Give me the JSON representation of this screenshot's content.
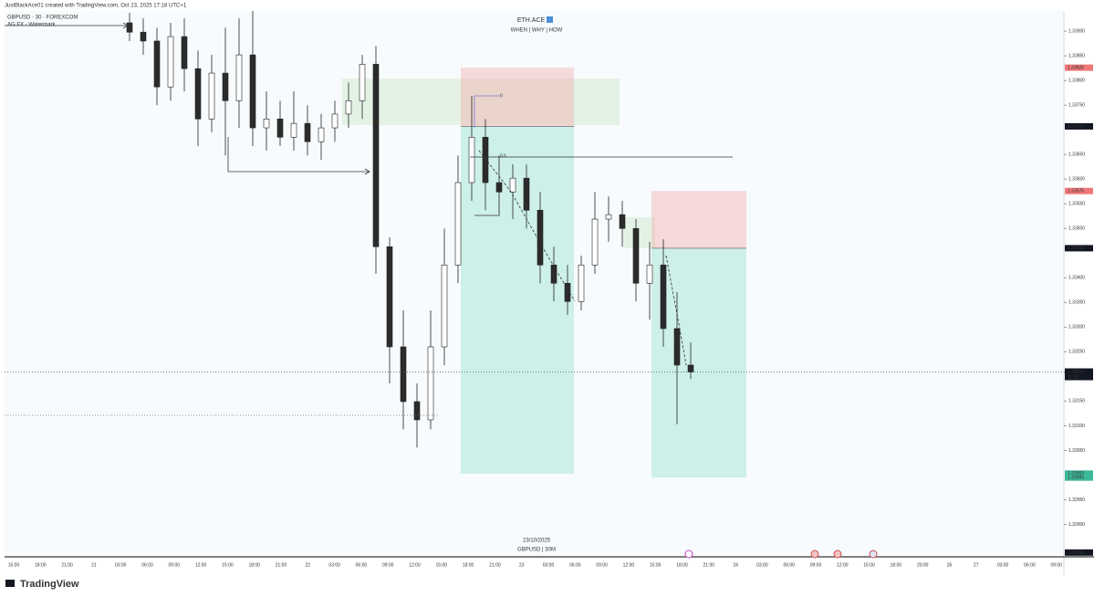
{
  "header": {
    "attribution": "JustBlackAce01 created with TradingView.com, Oct 23, 2025 17:18 UTC+1",
    "symbol": "GBPUSD · 30 · FOREXCOM",
    "watermark": "AG FX - Watermark",
    "brand": "ETH.ACE",
    "tagline": "WHEN | WHY | HOW",
    "date": "23/10/2025",
    "pair": "GBPUSD | 30M",
    "logo": "TradingView"
  },
  "chart_data": {
    "type": "candlestick",
    "candles": [
      [
        1.33917,
        1.33937,
        1.3388,
        1.33898
      ],
      [
        1.33898,
        1.33926,
        1.33852,
        1.3388
      ],
      [
        1.3388,
        1.33907,
        1.3375,
        1.33787
      ],
      [
        1.33787,
        1.33917,
        1.33759,
        1.33889
      ],
      [
        1.33889,
        1.33926,
        1.33778,
        1.33824
      ],
      [
        1.33824,
        1.33861,
        1.33667,
        1.33722
      ],
      [
        1.33722,
        1.33852,
        1.33695,
        1.33815
      ],
      [
        1.33815,
        1.33907,
        1.33648,
        1.33759
      ],
      [
        1.33759,
        1.33926,
        1.33704,
        1.33852
      ],
      [
        1.33852,
        1.33941,
        1.33667,
        1.33704
      ],
      [
        1.33704,
        1.33778,
        1.33658,
        1.33722
      ],
      [
        1.33722,
        1.33759,
        1.33667,
        1.33685
      ],
      [
        1.33685,
        1.33778,
        1.33658,
        1.33713
      ],
      [
        1.33713,
        1.3375,
        1.33648,
        1.33676
      ],
      [
        1.33676,
        1.33732,
        1.33639,
        1.33704
      ],
      [
        1.33704,
        1.33759,
        1.33676,
        1.33732
      ],
      [
        1.33732,
        1.33796,
        1.33704,
        1.33759
      ],
      [
        1.33759,
        1.33852,
        1.33722,
        1.33833
      ],
      [
        1.33833,
        1.3387,
        1.33408,
        1.33463
      ],
      [
        1.33463,
        1.33482,
        1.33186,
        1.3326
      ],
      [
        1.3326,
        1.33334,
        1.33093,
        1.33149
      ],
      [
        1.33149,
        1.33186,
        1.33056,
        1.33112
      ],
      [
        1.33112,
        1.33334,
        1.33093,
        1.3326
      ],
      [
        1.3326,
        1.335,
        1.33223,
        1.33426
      ],
      [
        1.33426,
        1.33648,
        1.33389,
        1.33593
      ],
      [
        1.33593,
        1.33769,
        1.33556,
        1.33685
      ],
      [
        1.33685,
        1.33722,
        1.33537,
        1.33593
      ],
      [
        1.33593,
        1.33648,
        1.33528,
        1.33574
      ],
      [
        1.33574,
        1.3363,
        1.33519,
        1.33602
      ],
      [
        1.33602,
        1.3363,
        1.335,
        1.33537
      ],
      [
        1.33537,
        1.33574,
        1.33389,
        1.33426
      ],
      [
        1.33426,
        1.33463,
        1.33352,
        1.33389
      ],
      [
        1.33389,
        1.33426,
        1.33325,
        1.33352
      ],
      [
        1.33352,
        1.33445,
        1.33334,
        1.33426
      ],
      [
        1.33426,
        1.33574,
        1.33408,
        1.33519
      ],
      [
        1.33519,
        1.33565,
        1.33473,
        1.33528
      ],
      [
        1.33528,
        1.33556,
        1.33463,
        1.335
      ],
      [
        1.335,
        1.33519,
        1.33352,
        1.33389
      ],
      [
        1.33389,
        1.33473,
        1.33315,
        1.33426
      ],
      [
        1.33426,
        1.33478,
        1.3326,
        1.33297
      ],
      [
        1.33297,
        1.33371,
        1.33103,
        1.33223
      ],
      [
        1.33223,
        1.33269,
        1.33195,
        1.33209
      ]
    ],
    "up_color": "#ffffff",
    "down_color": "#2b2b2b",
    "ylim": [
      1.32838,
      1.33941
    ],
    "yticks": [
      {
        "value": 1.329,
        "label": "1.32900"
      },
      {
        "value": 1.3295,
        "label": "1.32950"
      },
      {
        "value": 1.3305,
        "label": "1.33050"
      },
      {
        "value": 1.331,
        "label": "1.33100"
      },
      {
        "value": 1.3315,
        "label": "1.33150"
      },
      {
        "value": 1.3325,
        "label": "1.33250"
      },
      {
        "value": 1.333,
        "label": "1.33300"
      },
      {
        "value": 1.3335,
        "label": "1.33350"
      },
      {
        "value": 1.334,
        "label": "1.33400"
      },
      {
        "value": 1.335,
        "label": "1.33500"
      },
      {
        "value": 1.3355,
        "label": "1.33550"
      },
      {
        "value": 1.336,
        "label": "1.33600"
      },
      {
        "value": 1.3365,
        "label": "1.33650"
      },
      {
        "value": 1.3375,
        "label": "1.33750"
      },
      {
        "value": 1.338,
        "label": "1.33800"
      },
      {
        "value": 1.3385,
        "label": "1.33850"
      },
      {
        "value": 1.339,
        "label": "1.33900"
      }
    ],
    "xtick_labels": [
      "15:00",
      "18:00",
      "21:00",
      "21",
      "03:00",
      "06:00",
      "09:00",
      "12:00",
      "15:00",
      "18:00",
      "21:00",
      "22",
      "03:00",
      "06:00",
      "09:00",
      "12:00",
      "15:00",
      "18:00",
      "21:00",
      "23",
      "03:00",
      "06:00",
      "09:00",
      "12:00",
      "15:00",
      "18:00",
      "21:00",
      "24",
      "03:00",
      "06:00",
      "09:00",
      "12:00",
      "15:00",
      "18:00",
      "20:00",
      "26",
      "27",
      "03:00",
      "06:00",
      "09:00"
    ],
    "positions": [
      {
        "stop": 1.33826,
        "entry": 1.33707,
        "target": 1.33003
      },
      {
        "stop": 1.33576,
        "entry": {
          "value": 1.3346,
          "label": "1.33460"
        },
        "target": 1.32995
      }
    ],
    "last_price": 1.33209,
    "countdown": "11:22",
    "crosshair_price": 1.32843,
    "fib_labels": [
      "0",
      "0.5"
    ]
  }
}
